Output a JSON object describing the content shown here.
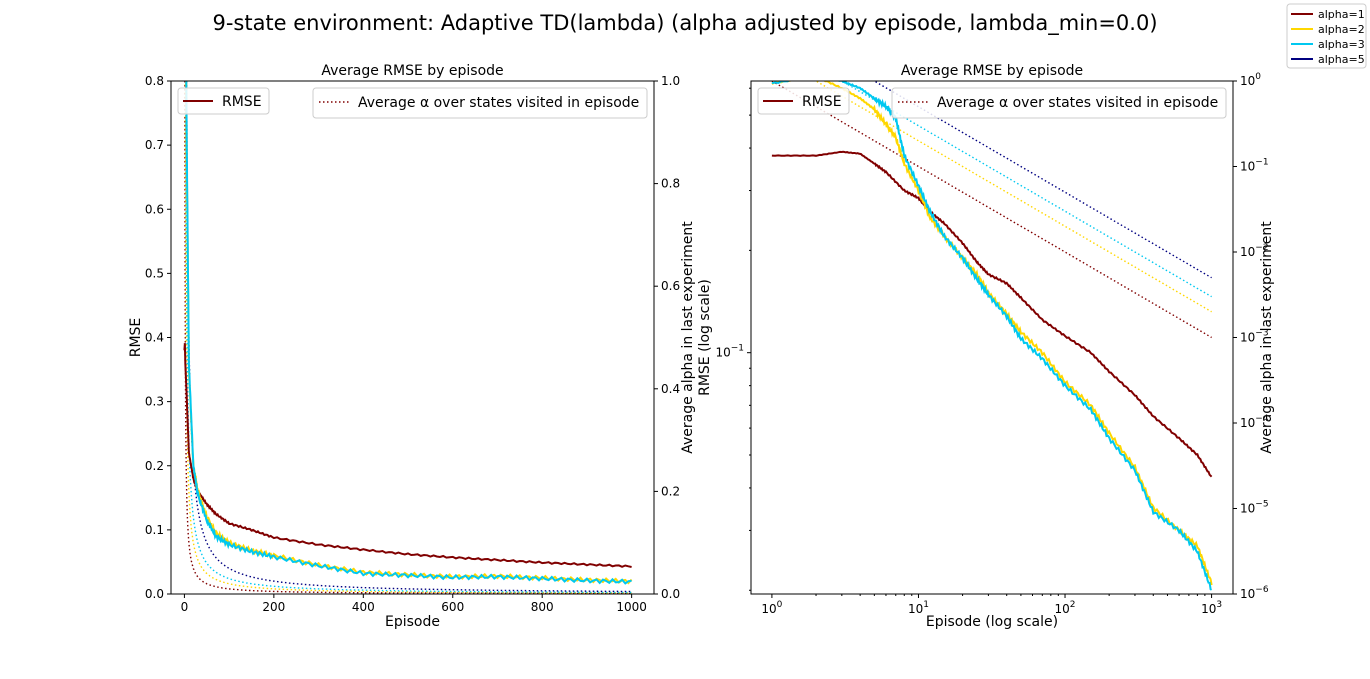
{
  "figure": {
    "suptitle": "9-state environment: Adaptive TD(lambda) (alpha adjusted by episode, lambda_min=0.0)",
    "legend": [
      {
        "label": "alpha=1",
        "color": "#800000"
      },
      {
        "label": "alpha=2",
        "color": "#ffd700"
      },
      {
        "label": "alpha=3",
        "color": "#00c8f0"
      },
      {
        "label": "alpha=5",
        "color": "#000080"
      }
    ]
  },
  "chart_data": [
    {
      "type": "line",
      "title": "Average RMSE by episode",
      "xlabel": "Episode",
      "ylabel": "RMSE",
      "y2label": "Average alpha in last experiment",
      "xlim": [
        -30,
        1050
      ],
      "ylim": [
        0,
        0.8
      ],
      "y2lim": [
        0,
        1.0
      ],
      "xticks": [
        "0",
        "200",
        "400",
        "600",
        "800",
        "1000"
      ],
      "yticks": [
        "0.0",
        "0.1",
        "0.2",
        "0.3",
        "0.4",
        "0.5",
        "0.6",
        "0.7",
        "0.8"
      ],
      "y2ticks": [
        "0.0",
        "0.2",
        "0.4",
        "0.6",
        "0.8",
        "1.0"
      ],
      "legend_rmse": "RMSE",
      "legend_alpha": "Average α over states visited in episode",
      "rmse_series": [
        {
          "name": "alpha=1",
          "color": "#800000",
          "x": [
            0,
            1,
            2,
            5,
            10,
            20,
            30,
            50,
            70,
            100,
            150,
            200,
            300,
            400,
            500,
            600,
            700,
            800,
            900,
            1000
          ],
          "y": [
            0.38,
            0.39,
            0.36,
            0.31,
            0.22,
            0.18,
            0.16,
            0.14,
            0.125,
            0.11,
            0.1,
            0.088,
            0.077,
            0.069,
            0.062,
            0.057,
            0.053,
            0.049,
            0.046,
            0.043
          ]
        },
        {
          "name": "alpha=2",
          "color": "#ffd700",
          "x": [
            0,
            1,
            2,
            5,
            10,
            20,
            30,
            50,
            70,
            100,
            150,
            200,
            300,
            400,
            500,
            600,
            700,
            800,
            900,
            1000
          ],
          "y": [
            1.5,
            1.2,
            1.0,
            0.7,
            0.35,
            0.2,
            0.16,
            0.12,
            0.095,
            0.08,
            0.068,
            0.06,
            0.045,
            0.034,
            0.03,
            0.027,
            0.028,
            0.025,
            0.022,
            0.02
          ]
        },
        {
          "name": "alpha=3",
          "color": "#00c8f0",
          "x": [
            0,
            1,
            2,
            5,
            10,
            20,
            30,
            50,
            70,
            100,
            150,
            200,
            300,
            400,
            500,
            600,
            700,
            800,
            900,
            1000
          ],
          "y": [
            1.5,
            1.2,
            1.0,
            0.72,
            0.36,
            0.2,
            0.155,
            0.115,
            0.09,
            0.077,
            0.066,
            0.058,
            0.044,
            0.032,
            0.029,
            0.026,
            0.027,
            0.024,
            0.021,
            0.019
          ]
        }
      ],
      "alpha_series": [
        {
          "name": "alpha=1",
          "color": "#800000",
          "scale": 1
        },
        {
          "name": "alpha=2",
          "color": "#ffd700",
          "scale": 2
        },
        {
          "name": "alpha=3",
          "color": "#00c8f0",
          "scale": 3
        },
        {
          "name": "alpha=5",
          "color": "#000080",
          "scale": 5
        }
      ]
    },
    {
      "type": "line",
      "title": "Average RMSE by episode",
      "xlabel": "Episode (log scale)",
      "ylabel": "RMSE (log scale)",
      "y2label": "Average alpha in last experiment",
      "xscale": "log",
      "yscale": "log",
      "y2scale": "log",
      "xlim": [
        0.72,
        1400
      ],
      "ylim": [
        0.0195,
        0.63
      ],
      "y2lim": [
        1e-06,
        1
      ],
      "xticks": [
        {
          "v": 1,
          "e": "0"
        },
        {
          "v": 10,
          "e": "1"
        },
        {
          "v": 100,
          "e": "2"
        },
        {
          "v": 1000,
          "e": "3"
        }
      ],
      "yticks": [
        {
          "v": 0.1,
          "e": "−1"
        }
      ],
      "y2ticks": [
        {
          "v": 1,
          "e": "0"
        },
        {
          "v": 0.1,
          "e": "−1"
        },
        {
          "v": 0.01,
          "e": "−2"
        },
        {
          "v": 0.001,
          "e": "−3"
        },
        {
          "v": 0.0001,
          "e": "−4"
        },
        {
          "v": 1e-05,
          "e": "−5"
        },
        {
          "v": 1e-06,
          "e": "−6"
        }
      ],
      "legend_rmse": "RMSE",
      "legend_alpha": "Average α over states visited in episode",
      "rmse_series": [
        {
          "name": "alpha=1",
          "color": "#800000",
          "x": [
            1,
            2,
            3,
            4,
            5,
            6,
            8,
            10,
            12,
            15,
            20,
            25,
            30,
            40,
            50,
            70,
            100,
            150,
            200,
            300,
            400,
            600,
            800,
            1000
          ],
          "y": [
            0.38,
            0.38,
            0.39,
            0.385,
            0.36,
            0.34,
            0.3,
            0.285,
            0.26,
            0.24,
            0.21,
            0.185,
            0.17,
            0.16,
            0.145,
            0.125,
            0.112,
            0.1,
            0.088,
            0.075,
            0.065,
            0.056,
            0.05,
            0.043
          ]
        },
        {
          "name": "alpha=2",
          "color": "#ffd700",
          "x": [
            1,
            2,
            3,
            4,
            5,
            6,
            7,
            8,
            10,
            12,
            15,
            20,
            25,
            30,
            40,
            50,
            70,
            100,
            150,
            200,
            300,
            400,
            600,
            800,
            1000
          ],
          "y": [
            0.62,
            0.65,
            0.6,
            0.56,
            0.52,
            0.47,
            0.43,
            0.36,
            0.3,
            0.25,
            0.22,
            0.19,
            0.17,
            0.15,
            0.13,
            0.115,
            0.1,
            0.082,
            0.07,
            0.058,
            0.046,
            0.035,
            0.03,
            0.027,
            0.021
          ]
        },
        {
          "name": "alpha=3",
          "color": "#00c8f0",
          "x": [
            1,
            2,
            3,
            4,
            5,
            6,
            7,
            8,
            10,
            12,
            15,
            20,
            25,
            30,
            40,
            50,
            70,
            100,
            150,
            200,
            300,
            400,
            600,
            800,
            1000
          ],
          "y": [
            0.62,
            0.65,
            0.63,
            0.6,
            0.56,
            0.53,
            0.49,
            0.38,
            0.31,
            0.26,
            0.22,
            0.19,
            0.165,
            0.148,
            0.128,
            0.11,
            0.096,
            0.08,
            0.068,
            0.056,
            0.045,
            0.034,
            0.03,
            0.026,
            0.02
          ]
        }
      ],
      "alpha_series": [
        {
          "name": "alpha=1",
          "color": "#800000",
          "scale": 1
        },
        {
          "name": "alpha=2",
          "color": "#ffd700",
          "scale": 2
        },
        {
          "name": "alpha=3",
          "color": "#00c8f0",
          "scale": 3
        },
        {
          "name": "alpha=5",
          "color": "#000080",
          "scale": 5
        }
      ]
    }
  ]
}
